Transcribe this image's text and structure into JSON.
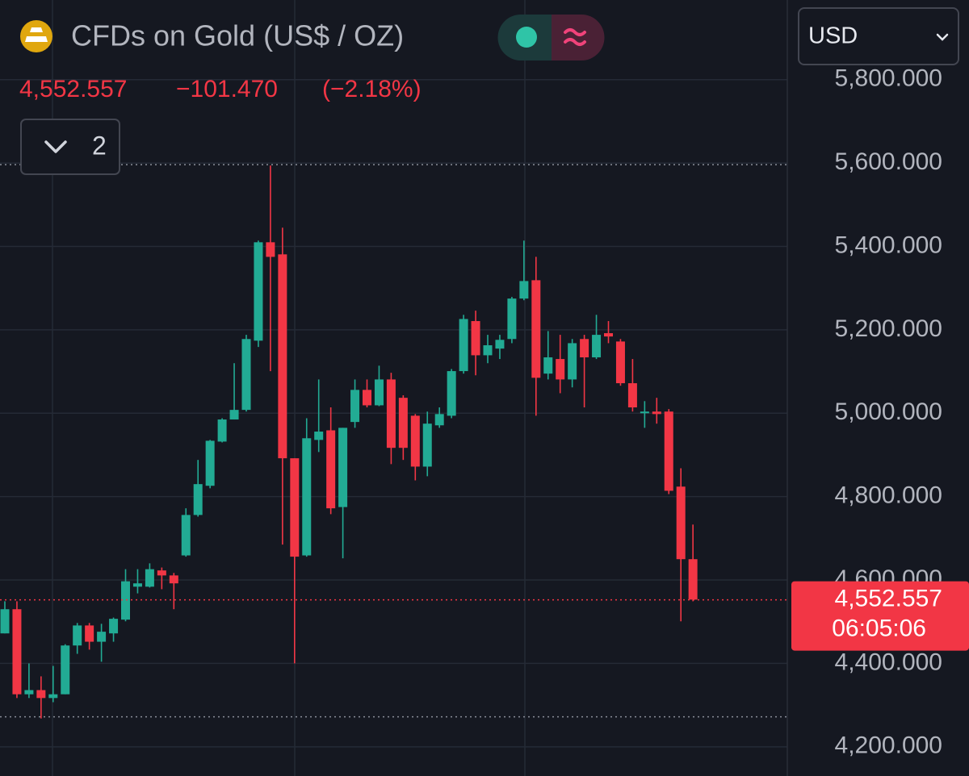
{
  "chart_data": {
    "type": "candlestick",
    "title": "CFDs on Gold (US$ / OZ)",
    "last_price": {
      "value": 4552.557,
      "label": "4,552.557"
    },
    "change": {
      "value": -101.47,
      "label": "−101.470"
    },
    "change_pct": {
      "value": -2.18,
      "label": "(−2.18%)"
    },
    "countdown": "06:05:06",
    "indicator_count": "2",
    "currency": "USD",
    "up_color": "#22ab94",
    "down_color": "#f23645",
    "grid": true,
    "ylim": [
      4130,
      5991
    ],
    "yticks": [
      {
        "value": 4200,
        "label": "4,200.000"
      },
      {
        "value": 4400,
        "label": "4,400.000"
      },
      {
        "value": 4600,
        "label": "4,600.000"
      },
      {
        "value": 4800,
        "label": "4,800.000"
      },
      {
        "value": 5000,
        "label": "5,000.000"
      },
      {
        "value": 5200,
        "label": "5,200.000"
      },
      {
        "value": 5400,
        "label": "5,400.000"
      },
      {
        "value": 5600,
        "label": "5,600.000"
      },
      {
        "value": 5800,
        "label": "5,800.000"
      }
    ],
    "range_lines": [
      5596,
      4272
    ],
    "ohlc": [
      [
        4472,
        4549,
        4472,
        4530
      ],
      [
        4530,
        4549,
        4317,
        4326
      ],
      [
        4326,
        4400,
        4317,
        4336
      ],
      [
        4336,
        4369,
        4268,
        4317
      ],
      [
        4317,
        4394,
        4307,
        4326
      ],
      [
        4326,
        4446,
        4326,
        4443
      ],
      [
        4443,
        4497,
        4423,
        4491
      ],
      [
        4491,
        4497,
        4433,
        4452
      ],
      [
        4452,
        4495,
        4404,
        4476
      ],
      [
        4472,
        4510,
        4452,
        4507
      ],
      [
        4505,
        4626,
        4501,
        4597
      ],
      [
        4584,
        4626,
        4568,
        4592
      ],
      [
        4584,
        4640,
        4582,
        4626
      ],
      [
        4623,
        4630,
        4578,
        4611
      ],
      [
        4611,
        4617,
        4530,
        4592
      ],
      [
        4659,
        4772,
        4656,
        4756
      ],
      [
        4756,
        4888,
        4752,
        4830
      ],
      [
        4826,
        4936,
        4820,
        4934
      ],
      [
        4932,
        4988,
        4930,
        4985
      ],
      [
        4985,
        5120,
        4985,
        5008
      ],
      [
        5008,
        5188,
        5004,
        5178
      ],
      [
        5174,
        5414,
        5159,
        5410
      ],
      [
        5410,
        5594,
        5101,
        5375
      ],
      [
        5381,
        5445,
        4685,
        4892
      ],
      [
        4892,
        4892,
        4400,
        4656
      ],
      [
        4659,
        4988,
        4656,
        4940
      ],
      [
        4936,
        5081,
        4907,
        4956
      ],
      [
        4959,
        5014,
        4758,
        4772
      ],
      [
        4775,
        4965,
        4652,
        4965
      ],
      [
        4979,
        5081,
        4965,
        5056
      ],
      [
        5056,
        5081,
        5014,
        5019
      ],
      [
        5019,
        5114,
        5017,
        5081
      ],
      [
        5081,
        5097,
        4878,
        4917
      ],
      [
        5037,
        5043,
        4888,
        4917
      ],
      [
        4994,
        4998,
        4839,
        4872
      ],
      [
        4872,
        5004,
        4849,
        4975
      ],
      [
        4971,
        5014,
        4965,
        4998
      ],
      [
        4994,
        5106,
        4988,
        5101
      ],
      [
        5101,
        5236,
        5095,
        5226
      ],
      [
        5221,
        5246,
        5091,
        5139
      ],
      [
        5139,
        5188,
        5120,
        5163
      ],
      [
        5155,
        5188,
        5130,
        5176
      ],
      [
        5178,
        5279,
        5168,
        5275
      ],
      [
        5275,
        5414,
        5271,
        5317
      ],
      [
        5319,
        5375,
        4994,
        5085
      ],
      [
        5095,
        5197,
        5081,
        5134
      ],
      [
        5130,
        5188,
        5048,
        5081
      ],
      [
        5081,
        5178,
        5062,
        5168
      ],
      [
        5178,
        5188,
        5014,
        5134
      ],
      [
        5134,
        5236,
        5130,
        5188
      ],
      [
        5192,
        5221,
        5168,
        5184
      ],
      [
        5172,
        5178,
        5066,
        5072
      ],
      [
        5072,
        5130,
        5004,
        5014
      ],
      [
        5000,
        5029,
        4965,
        5004
      ],
      [
        5004,
        5037,
        4975,
        4998
      ],
      [
        5004,
        5010,
        4806,
        4814
      ],
      [
        4824,
        4868,
        4501,
        4650
      ],
      [
        4650,
        4733,
        4549,
        4553
      ]
    ]
  }
}
